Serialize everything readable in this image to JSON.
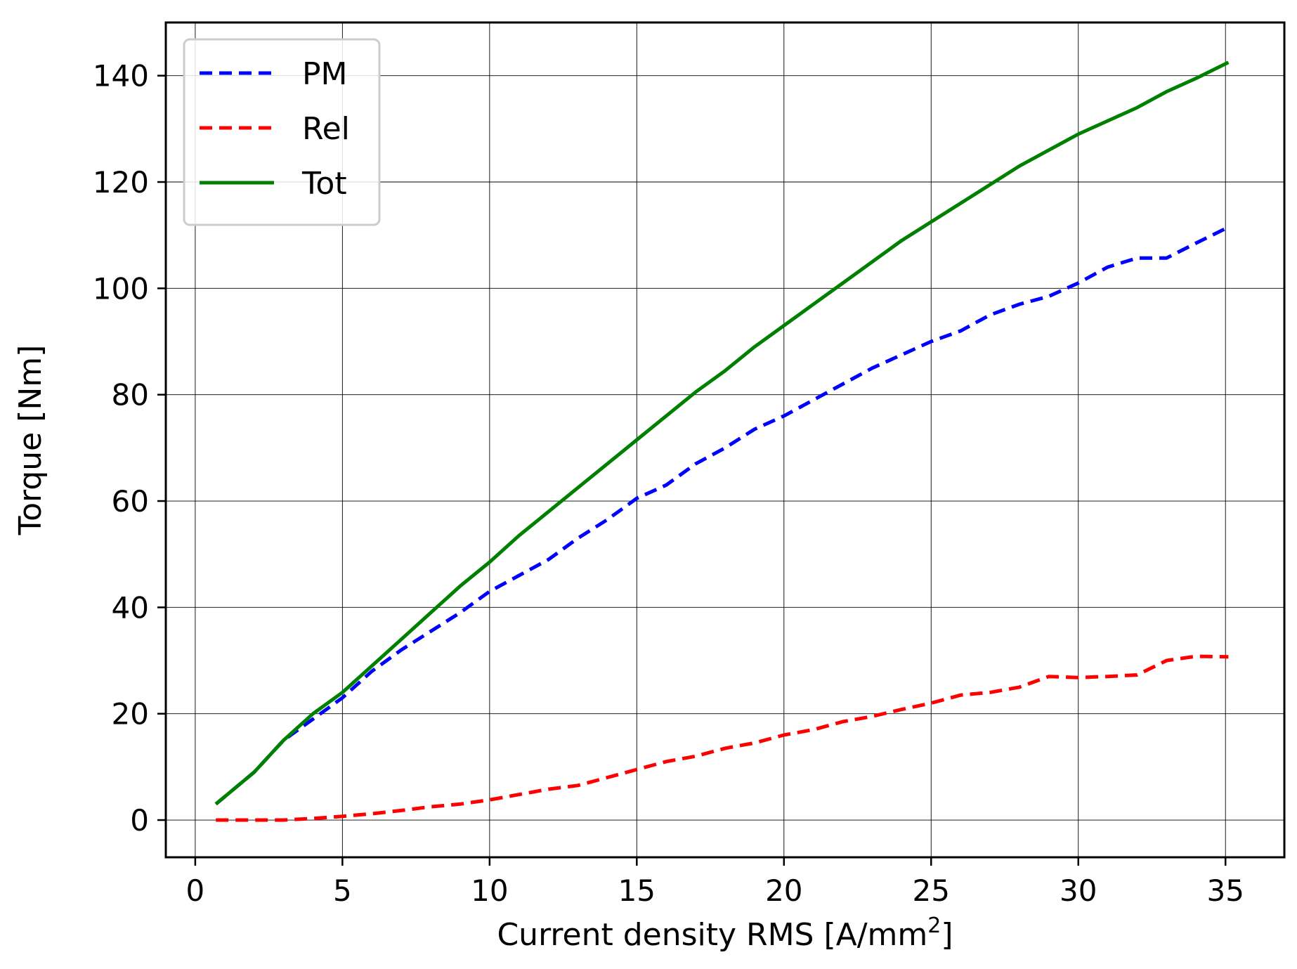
{
  "chart_data": {
    "type": "line",
    "title": "",
    "xlabel": "Current density RMS [A/mm",
    "xlabel_superscript": "2",
    "xlabel_suffix": "]",
    "ylabel": "Torque [Nm]",
    "xlim": [
      -1,
      37
    ],
    "ylim": [
      -7,
      150
    ],
    "xticks": [
      0,
      5,
      10,
      15,
      20,
      25,
      30,
      35
    ],
    "yticks": [
      0,
      20,
      40,
      60,
      80,
      100,
      120,
      140
    ],
    "grid": true,
    "legend_position": "top-left",
    "x": [
      0.7,
      2,
      3,
      4,
      5,
      6,
      7,
      8,
      9,
      10,
      11,
      12,
      13,
      14,
      15,
      16,
      17,
      18,
      19,
      20,
      21,
      22,
      23,
      24,
      25,
      26,
      27,
      28,
      29,
      30,
      31,
      32,
      33,
      34,
      35.1
    ],
    "series": [
      {
        "name": "PM",
        "color": "#0000ff",
        "style": "dashed",
        "values": [
          3,
          9,
          15,
          19,
          23,
          28,
          32,
          35.5,
          39,
          43,
          46,
          49,
          53,
          56.5,
          60.5,
          63,
          67,
          70,
          73.5,
          76,
          79,
          82,
          85,
          87.5,
          90,
          92,
          95,
          97,
          98.5,
          101,
          104,
          105.7,
          105.7,
          108.5,
          111.5
        ]
      },
      {
        "name": "Rel",
        "color": "#ff0000",
        "style": "dashed",
        "values": [
          0,
          0,
          0,
          0.3,
          0.7,
          1.2,
          1.8,
          2.5,
          3,
          3.8,
          4.8,
          5.8,
          6.5,
          8,
          9.5,
          11,
          12,
          13.5,
          14.5,
          16,
          17,
          18.5,
          19.5,
          20.8,
          22,
          23.5,
          24,
          25,
          27,
          26.8,
          27,
          27.3,
          30,
          30.8,
          30.7
        ]
      },
      {
        "name": "Tot",
        "color": "#008000",
        "style": "solid",
        "values": [
          3,
          9,
          15,
          20,
          24,
          29,
          34,
          39,
          44,
          48.5,
          53.5,
          58,
          62.5,
          67,
          71.5,
          76,
          80.5,
          84.5,
          89,
          93,
          97,
          101,
          105,
          109,
          112.5,
          116,
          119.5,
          123,
          126,
          129,
          131.5,
          134,
          137,
          139.5,
          142.5
        ]
      }
    ]
  }
}
